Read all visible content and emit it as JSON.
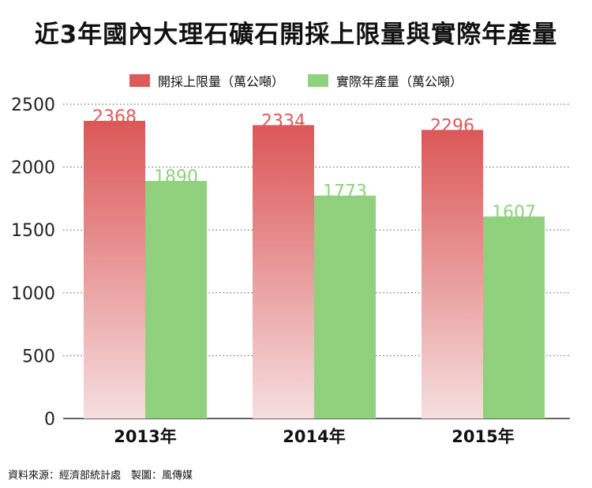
{
  "chart_data": {
    "type": "bar",
    "title": "近3年國內大理石礦石開採上限量與實際年產量",
    "categories": [
      "2013年",
      "2014年",
      "2015年"
    ],
    "series": [
      {
        "name": "開採上限量（萬公噸）",
        "values": [
          2368,
          2334,
          2296
        ],
        "color": "#dd5a5a"
      },
      {
        "name": "實際年產量（萬公噸）",
        "values": [
          1890,
          1773,
          1607
        ],
        "color": "#8fd17c"
      }
    ],
    "yticks": [
      0,
      500,
      1000,
      1500,
      2000,
      2500
    ],
    "ylim": [
      0,
      2500
    ],
    "xlabel": "",
    "ylabel": "",
    "grid": true,
    "legend": "top-center"
  },
  "source": "資料來源：經濟部統計處　製圖：風傳媒"
}
